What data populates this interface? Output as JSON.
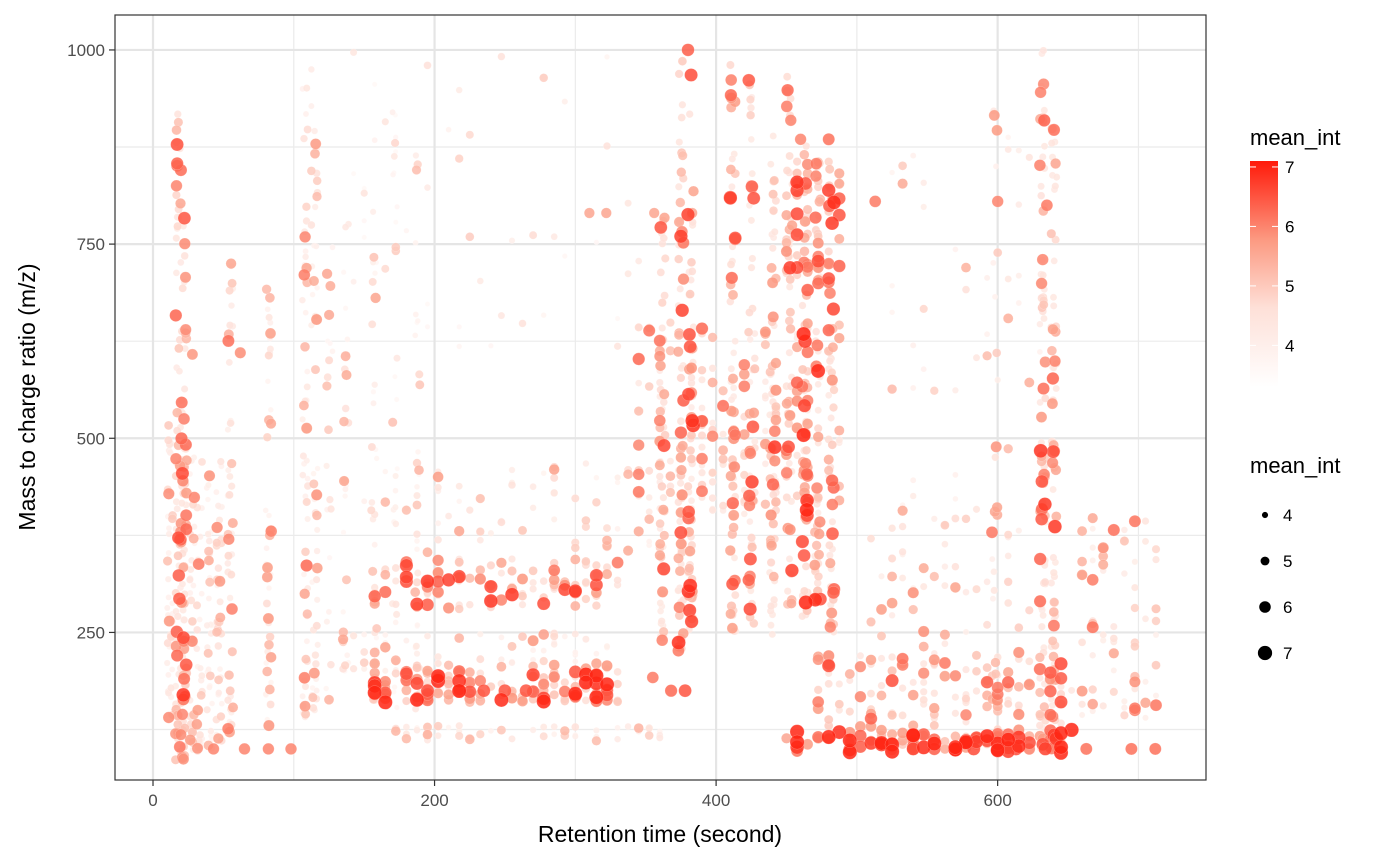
{
  "chart_data": {
    "type": "scatter",
    "xlabel": "Retention time (second)",
    "ylabel": "Mass to charge ratio (m/z)",
    "xlim": [
      -27,
      748
    ],
    "ylim": [
      60,
      1045
    ],
    "x_ticks": [
      0,
      200,
      400,
      600
    ],
    "y_ticks": [
      250,
      500,
      750,
      1000
    ],
    "grid": true,
    "color_scale": {
      "title": "mean_int",
      "ticks": [
        4,
        5,
        6,
        7
      ],
      "range": [
        3.3,
        7.1
      ],
      "low_color": "#ffffff",
      "high_color": "#ff1a0a"
    },
    "size_scale": {
      "title": "mean_int",
      "values": [
        4,
        5,
        6,
        7
      ]
    },
    "columns": [
      {
        "x": 12,
        "ymin": 140,
        "ymax": 520,
        "n": 40,
        "base": 3.9,
        "spread": 1.3
      },
      {
        "x": 18,
        "ymin": 85,
        "ymax": 930,
        "n": 75,
        "base": 4.2,
        "spread": 1.5
      },
      {
        "x": 22,
        "ymin": 80,
        "ymax": 790,
        "n": 80,
        "base": 4.3,
        "spread": 1.6
      },
      {
        "x": 28,
        "ymin": 95,
        "ymax": 480,
        "n": 35,
        "base": 3.9,
        "spread": 1.4
      },
      {
        "x": 33,
        "ymin": 95,
        "ymax": 470,
        "n": 30,
        "base": 3.9,
        "spread": 1.4
      },
      {
        "x": 40,
        "ymin": 100,
        "ymax": 470,
        "n": 35,
        "base": 3.8,
        "spread": 1.3
      },
      {
        "x": 47,
        "ymin": 110,
        "ymax": 480,
        "n": 40,
        "base": 3.9,
        "spread": 1.4
      },
      {
        "x": 55,
        "ymin": 120,
        "ymax": 750,
        "n": 45,
        "base": 4.0,
        "spread": 1.4
      },
      {
        "x": 82,
        "ymin": 130,
        "ymax": 700,
        "n": 45,
        "base": 3.8,
        "spread": 1.4
      },
      {
        "x": 108,
        "ymin": 140,
        "ymax": 960,
        "n": 55,
        "base": 3.9,
        "spread": 1.5
      },
      {
        "x": 115,
        "ymin": 150,
        "ymax": 900,
        "n": 45,
        "base": 3.8,
        "spread": 1.4
      },
      {
        "x": 125,
        "ymin": 160,
        "ymax": 760,
        "n": 20,
        "base": 3.7,
        "spread": 1.2
      },
      {
        "x": 137,
        "ymin": 190,
        "ymax": 780,
        "n": 25,
        "base": 3.7,
        "spread": 1.2
      },
      {
        "x": 157,
        "ymin": 160,
        "ymax": 880,
        "n": 25,
        "base": 3.7,
        "spread": 1.2
      },
      {
        "x": 172,
        "ymin": 150,
        "ymax": 940,
        "n": 25,
        "base": 3.6,
        "spread": 1.1
      },
      {
        "x": 188,
        "ymin": 150,
        "ymax": 950,
        "n": 25,
        "base": 3.6,
        "spread": 1.1
      },
      {
        "x": 362,
        "ymin": 240,
        "ymax": 790,
        "n": 55,
        "base": 4.2,
        "spread": 1.6
      },
      {
        "x": 375,
        "ymin": 220,
        "ymax": 1000,
        "n": 60,
        "base": 4.4,
        "spread": 1.6
      },
      {
        "x": 382,
        "ymin": 250,
        "ymax": 990,
        "n": 60,
        "base": 4.4,
        "spread": 1.7
      },
      {
        "x": 412,
        "ymin": 250,
        "ymax": 990,
        "n": 55,
        "base": 4.3,
        "spread": 1.6
      },
      {
        "x": 425,
        "ymin": 260,
        "ymax": 980,
        "n": 50,
        "base": 4.2,
        "spread": 1.6
      },
      {
        "x": 440,
        "ymin": 240,
        "ymax": 890,
        "n": 55,
        "base": 4.3,
        "spread": 1.6
      },
      {
        "x": 452,
        "ymin": 260,
        "ymax": 970,
        "n": 50,
        "base": 4.3,
        "spread": 1.6
      },
      {
        "x": 463,
        "ymin": 270,
        "ymax": 890,
        "n": 55,
        "base": 4.5,
        "spread": 1.7
      },
      {
        "x": 472,
        "ymin": 290,
        "ymax": 870,
        "n": 45,
        "base": 4.4,
        "spread": 1.6
      },
      {
        "x": 482,
        "ymin": 250,
        "ymax": 880,
        "n": 50,
        "base": 4.4,
        "spread": 1.6
      },
      {
        "x": 598,
        "ymin": 160,
        "ymax": 930,
        "n": 25,
        "base": 3.9,
        "spread": 1.4
      },
      {
        "x": 632,
        "ymin": 100,
        "ymax": 1000,
        "n": 80,
        "base": 4.3,
        "spread": 1.6
      },
      {
        "x": 640,
        "ymin": 100,
        "ymax": 900,
        "n": 70,
        "base": 4.3,
        "spread": 1.6
      }
    ],
    "bands": [
      {
        "ymin": 160,
        "ymax": 200,
        "xmin": 155,
        "xmax": 330,
        "n": 140,
        "base": 4.6,
        "spread": 2.0
      },
      {
        "ymin": 280,
        "ymax": 345,
        "xmin": 155,
        "xmax": 330,
        "n": 110,
        "base": 4.4,
        "spread": 1.8
      },
      {
        "ymin": 200,
        "ymax": 250,
        "xmin": 130,
        "xmax": 330,
        "n": 70,
        "base": 3.9,
        "spread": 1.4
      },
      {
        "ymin": 110,
        "ymax": 130,
        "xmin": 170,
        "xmax": 360,
        "n": 55,
        "base": 3.8,
        "spread": 1.2
      },
      {
        "ymin": 350,
        "ymax": 470,
        "xmin": 150,
        "xmax": 360,
        "n": 70,
        "base": 3.8,
        "spread": 1.4
      },
      {
        "ymin": 400,
        "ymax": 650,
        "xmin": 340,
        "xmax": 490,
        "n": 220,
        "base": 4.2,
        "spread": 1.6
      },
      {
        "ymin": 690,
        "ymax": 860,
        "xmin": 445,
        "xmax": 490,
        "n": 60,
        "base": 4.7,
        "spread": 1.6
      },
      {
        "ymin": 95,
        "ymax": 125,
        "xmin": 450,
        "xmax": 650,
        "n": 110,
        "base": 5.0,
        "spread": 2.0
      },
      {
        "ymin": 125,
        "ymax": 220,
        "xmin": 470,
        "xmax": 650,
        "n": 120,
        "base": 4.4,
        "spread": 1.6
      },
      {
        "ymin": 220,
        "ymax": 400,
        "xmin": 500,
        "xmax": 620,
        "n": 50,
        "base": 4.0,
        "spread": 1.4
      },
      {
        "ymin": 140,
        "ymax": 400,
        "xmin": 655,
        "xmax": 715,
        "n": 70,
        "base": 4.0,
        "spread": 1.6
      },
      {
        "ymin": 400,
        "ymax": 900,
        "xmin": 520,
        "xmax": 630,
        "n": 45,
        "base": 3.8,
        "spread": 1.3
      },
      {
        "ymin": 600,
        "ymax": 1000,
        "xmin": 110,
        "xmax": 350,
        "n": 55,
        "base": 3.6,
        "spread": 1.0
      }
    ],
    "highlights": [
      {
        "x": 43,
        "y": 100,
        "v": 6.0
      },
      {
        "x": 65,
        "y": 100,
        "v": 6.0
      },
      {
        "x": 82,
        "y": 100,
        "v": 6.0
      },
      {
        "x": 98,
        "y": 100,
        "v": 6.0
      },
      {
        "x": 62,
        "y": 610,
        "v": 5.9
      },
      {
        "x": 28,
        "y": 608,
        "v": 5.8
      },
      {
        "x": 378,
        "y": 175,
        "v": 6.5
      },
      {
        "x": 368,
        "y": 175,
        "v": 6.3
      },
      {
        "x": 355,
        "y": 192,
        "v": 6.1
      },
      {
        "x": 540,
        "y": 100,
        "v": 6.6
      },
      {
        "x": 555,
        "y": 100,
        "v": 6.4
      },
      {
        "x": 583,
        "y": 100,
        "v": 6.6
      },
      {
        "x": 613,
        "y": 100,
        "v": 6.6
      },
      {
        "x": 663,
        "y": 100,
        "v": 6.2
      },
      {
        "x": 695,
        "y": 100,
        "v": 6.2
      },
      {
        "x": 712,
        "y": 100,
        "v": 6.2
      },
      {
        "x": 513,
        "y": 805,
        "v": 6.1
      },
      {
        "x": 600,
        "y": 805,
        "v": 6.0
      },
      {
        "x": 480,
        "y": 885,
        "v": 6.2
      },
      {
        "x": 460,
        "y": 885,
        "v": 6.0
      },
      {
        "x": 380,
        "y": 1000,
        "v": 6.4
      },
      {
        "x": 310,
        "y": 790,
        "v": 5.6
      },
      {
        "x": 322,
        "y": 790,
        "v": 5.6
      },
      {
        "x": 356,
        "y": 790,
        "v": 5.6
      },
      {
        "x": 383,
        "y": 790,
        "v": 5.6
      },
      {
        "x": 635,
        "y": 800,
        "v": 6.1
      },
      {
        "x": 632,
        "y": 730,
        "v": 6.0
      },
      {
        "x": 82,
        "y": 268,
        "v": 5.8
      },
      {
        "x": 195,
        "y": 175,
        "v": 6.6
      },
      {
        "x": 235,
        "y": 175,
        "v": 6.5
      },
      {
        "x": 250,
        "y": 175,
        "v": 6.5
      },
      {
        "x": 265,
        "y": 175,
        "v": 6.5
      }
    ]
  }
}
